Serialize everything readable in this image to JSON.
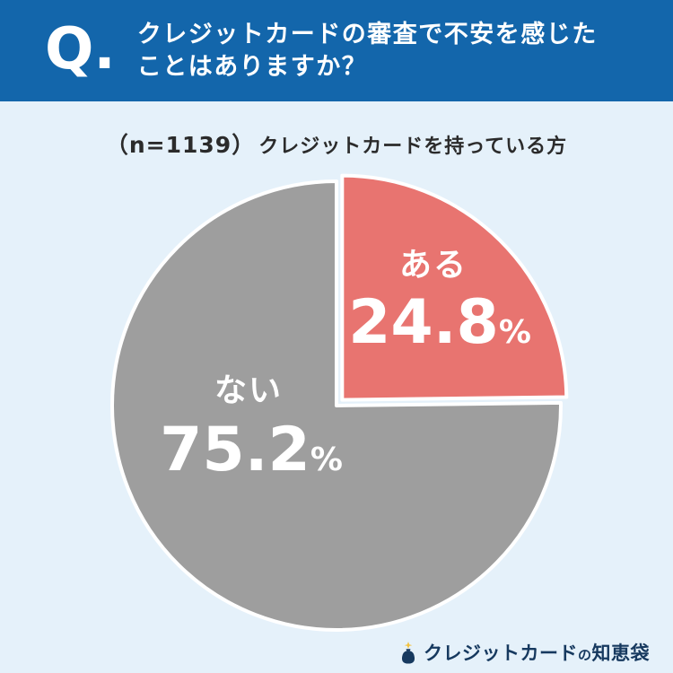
{
  "colors": {
    "header_bg": "#1366ab",
    "page_bg": "#e5f1fa",
    "subtitle_text": "#2b2b2b",
    "label_text": "#ffffff",
    "slice_border": "#ffffff",
    "logo_text": "#16395f",
    "logo_accent": "#f3c23c",
    "slice_yes": "#e87470",
    "slice_no": "#9e9e9e"
  },
  "header": {
    "q_label": "Q.",
    "line1": "クレジットカードの審査で不安を感じた",
    "line2": "ことはありますか？"
  },
  "subtitle": {
    "sample": "（n=1139）",
    "audience": "クレジットカードを持っている方"
  },
  "chart_data": {
    "type": "pie",
    "title": "クレジットカードの審査で不安を感じたことはありますか？",
    "caption": "（n=1139）クレジットカードを持っている方",
    "sample_size": 1139,
    "start_angle_deg": -90,
    "direction": "clockwise",
    "percent_sign": "%",
    "slices": [
      {
        "label": "ある",
        "value": 24.8,
        "display": "24.8",
        "color": "#e87470",
        "exploded": true
      },
      {
        "label": "ない",
        "value": 75.2,
        "display": "75.2",
        "color": "#9e9e9e",
        "exploded": false
      }
    ]
  },
  "logo": {
    "part1": "クレジットカード",
    "particle": "の",
    "part2": "知恵袋"
  }
}
